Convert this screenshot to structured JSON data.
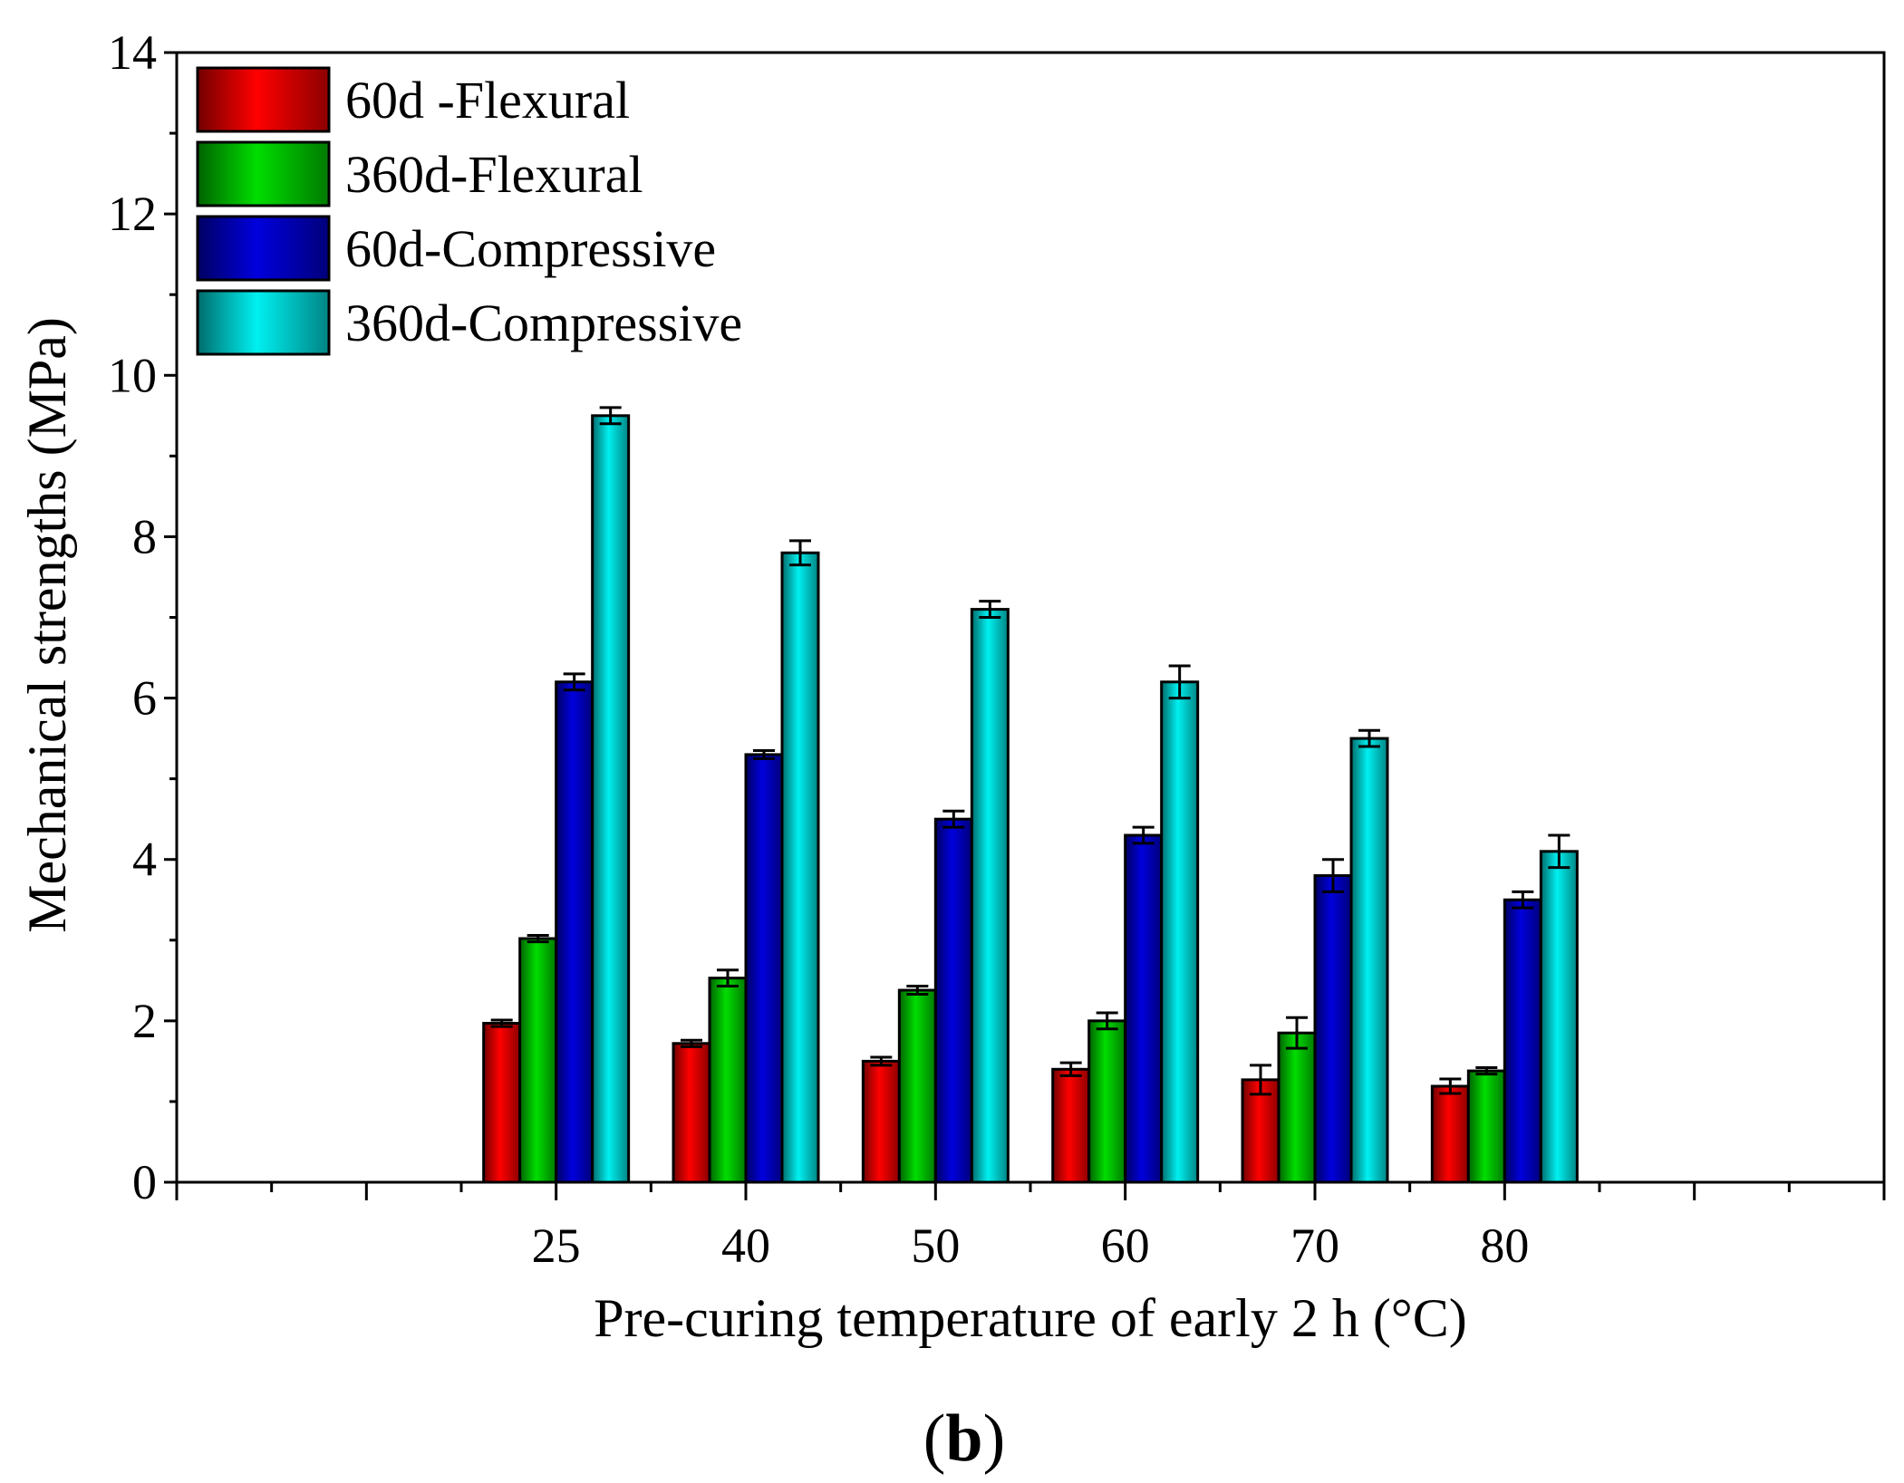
{
  "chart_data": {
    "type": "bar",
    "title": "",
    "xlabel": "Pre-curing temperature of early 2 h (°C)",
    "ylabel": "Mechanical strengths (MPa)",
    "panel_label": "b",
    "categories": [
      "25",
      "40",
      "50",
      "60",
      "70",
      "80"
    ],
    "ylim": [
      0,
      14
    ],
    "yticks": [
      "0",
      "2",
      "4",
      "6",
      "8",
      "10",
      "12",
      "14"
    ],
    "legend_position": "top-left",
    "series": [
      {
        "name": "60d -Flexural",
        "color": "#ff0000",
        "values": [
          1.97,
          1.72,
          1.5,
          1.4,
          1.27,
          1.19
        ],
        "errors": [
          0.04,
          0.04,
          0.05,
          0.08,
          0.18,
          0.09
        ]
      },
      {
        "name": "360d-Flexural",
        "color": "#00dd00",
        "values": [
          3.02,
          2.53,
          2.38,
          2.0,
          1.85,
          1.38
        ],
        "errors": [
          0.04,
          0.1,
          0.05,
          0.1,
          0.19,
          0.04
        ]
      },
      {
        "name": "60d-Compressive",
        "color": "#0000dd",
        "values": [
          6.2,
          5.3,
          4.5,
          4.3,
          3.8,
          3.5
        ],
        "errors": [
          0.1,
          0.05,
          0.1,
          0.1,
          0.2,
          0.1
        ]
      },
      {
        "name": "360d-Compressive",
        "color": "#00f0f0",
        "values": [
          9.5,
          7.8,
          7.1,
          6.2,
          5.5,
          4.1
        ],
        "errors": [
          0.1,
          0.15,
          0.1,
          0.2,
          0.1,
          0.2
        ]
      }
    ]
  }
}
